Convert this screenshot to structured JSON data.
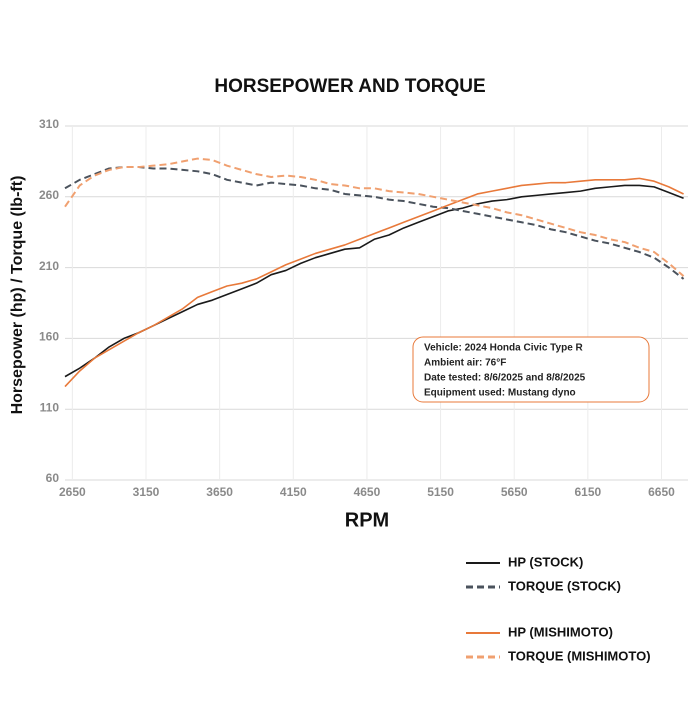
{
  "chart_data": {
    "type": "line",
    "title": "HORSEPOWER AND TORQUE",
    "x_label": "RPM",
    "y_label": "Horsepower (hp) / Torque (lb-ft)",
    "x": [
      2600,
      2700,
      2800,
      2900,
      3000,
      3100,
      3200,
      3300,
      3400,
      3500,
      3600,
      3700,
      3800,
      3900,
      4000,
      4100,
      4200,
      4300,
      4400,
      4500,
      4600,
      4700,
      4800,
      4900,
      5000,
      5100,
      5200,
      5300,
      5400,
      5500,
      5600,
      5700,
      5800,
      5900,
      6000,
      6100,
      6200,
      6300,
      6400,
      6500,
      6600,
      6700,
      6800
    ],
    "series": [
      {
        "name": "HP (STOCK)",
        "color": "#1a1a1a",
        "dashed": false,
        "values": [
          133,
          139,
          146,
          154,
          160,
          164,
          169,
          174,
          179,
          184,
          187,
          191,
          195,
          199,
          205,
          208,
          213,
          217,
          220,
          223,
          224,
          230,
          233,
          238,
          242,
          246,
          250,
          252,
          255,
          257,
          258,
          260,
          261,
          262,
          263,
          264,
          266,
          267,
          268,
          268,
          267,
          263,
          259
        ]
      },
      {
        "name": "TORQUE (STOCK)",
        "color": "#4a525c",
        "dashed": true,
        "values": [
          266,
          272,
          276,
          280,
          281,
          281,
          280,
          280,
          279,
          278,
          276,
          272,
          270,
          268,
          270,
          269,
          268,
          266,
          265,
          262,
          261,
          260,
          258,
          257,
          255,
          253,
          252,
          250,
          248,
          246,
          244,
          242,
          240,
          237,
          235,
          232,
          229,
          227,
          224,
          221,
          217,
          210,
          202
        ]
      },
      {
        "name": "HP (MISHIMOTO)",
        "color": "#e8793a",
        "dashed": false,
        "values": [
          126,
          137,
          146,
          152,
          158,
          164,
          169,
          175,
          181,
          189,
          193,
          197,
          199,
          202,
          207,
          212,
          216,
          220,
          223,
          226,
          230,
          234,
          238,
          242,
          246,
          250,
          254,
          258,
          262,
          264,
          266,
          268,
          269,
          270,
          270,
          271,
          272,
          272,
          272,
          273,
          271,
          267,
          262
        ]
      },
      {
        "name": "TORQUE (MISHIMOTO)",
        "color": "#f0a070",
        "dashed": true,
        "values": [
          253,
          268,
          275,
          279,
          281,
          281,
          282,
          283,
          285,
          287,
          286,
          282,
          279,
          276,
          274,
          275,
          274,
          272,
          269,
          268,
          266,
          266,
          264,
          263,
          262,
          260,
          258,
          256,
          254,
          252,
          249,
          247,
          244,
          241,
          238,
          235,
          233,
          230,
          228,
          224,
          221,
          213,
          204
        ]
      }
    ],
    "xlim": [
      2600,
      6830
    ],
    "xticks": [
      2650,
      3150,
      3650,
      4150,
      4650,
      5150,
      5650,
      6150,
      6650
    ],
    "ylim": [
      60,
      310
    ],
    "yticks": [
      60,
      110,
      160,
      210,
      260,
      310
    ],
    "grid": true,
    "annotations": [
      "Vehicle: 2024 Honda Civic Type R",
      "Ambient air: 76°F",
      "Date tested: 8/6/2025 and 8/8/2025",
      "Equipment used: Mustang dyno"
    ],
    "annotation_color": "#e8793a"
  }
}
